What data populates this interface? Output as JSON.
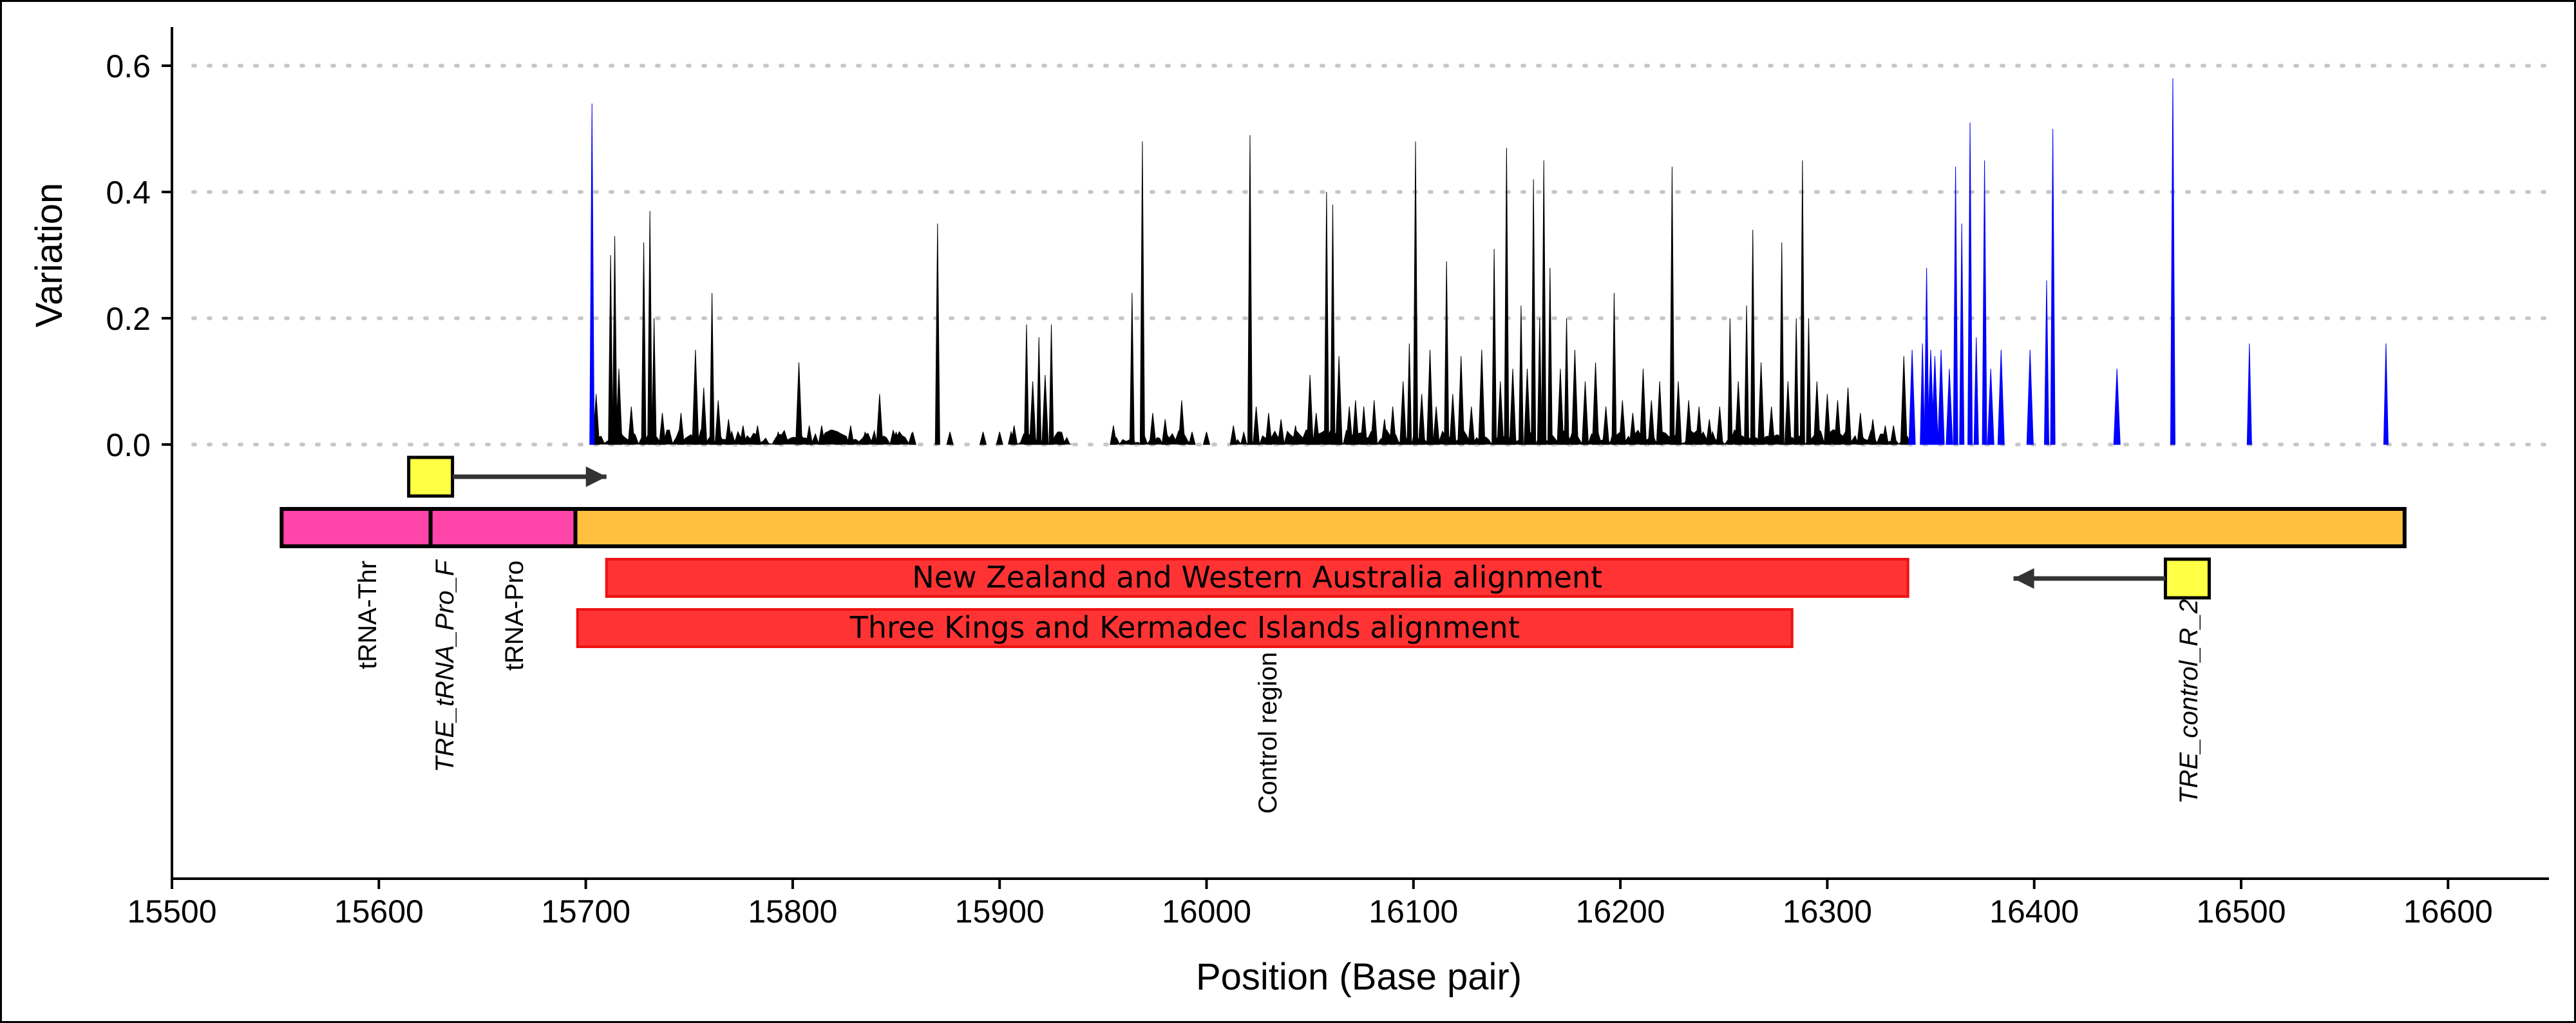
{
  "chart_data": {
    "type": "area",
    "xlabel": "Position (Base pair)",
    "ylabel": "Variation",
    "xlim": [
      15500,
      16655
    ],
    "ylim": [
      0,
      0.65
    ],
    "x_ticks": [
      15500,
      15600,
      15700,
      15800,
      15900,
      16000,
      16100,
      16200,
      16300,
      16400,
      16500,
      16600
    ],
    "y_ticks": [
      0.0,
      0.2,
      0.4,
      0.6
    ],
    "x_tick_labels": [
      "15500",
      "15600",
      "15700",
      "15800",
      "15900",
      "16000",
      "16100",
      "16200",
      "16300",
      "16400",
      "16500",
      "16600"
    ],
    "y_tick_labels": [
      "0.0",
      "0.2",
      "0.4",
      "0.6"
    ],
    "grid": "horizontal dotted",
    "series": [
      {
        "color": "#000000",
        "peaks": [
          [
            15705,
            0.08
          ],
          [
            15712,
            0.3
          ],
          [
            15714,
            0.33
          ],
          [
            15716,
            0.12
          ],
          [
            15722,
            0.06
          ],
          [
            15728,
            0.32
          ],
          [
            15731,
            0.37
          ],
          [
            15733,
            0.2
          ],
          [
            15737,
            0.05
          ],
          [
            15746,
            0.05
          ],
          [
            15753,
            0.15
          ],
          [
            15757,
            0.09
          ],
          [
            15761,
            0.24
          ],
          [
            15764,
            0.07
          ],
          [
            15769,
            0.04
          ],
          [
            15776,
            0.03
          ],
          [
            15783,
            0.03
          ],
          [
            15793,
            0.02
          ],
          [
            15803,
            0.13
          ],
          [
            15808,
            0.03
          ],
          [
            15814,
            0.03
          ],
          [
            15822,
            0.02
          ],
          [
            15828,
            0.03
          ],
          [
            15835,
            0.02
          ],
          [
            15842,
            0.08
          ],
          [
            15850,
            0.02
          ],
          [
            15858,
            0.02
          ],
          [
            15870,
            0.35
          ],
          [
            15876,
            0.02
          ],
          [
            15892,
            0.02
          ],
          [
            15900,
            0.02
          ],
          [
            15907,
            0.03
          ],
          [
            15913,
            0.19
          ],
          [
            15916,
            0.1
          ],
          [
            15919,
            0.17
          ],
          [
            15922,
            0.11
          ],
          [
            15925,
            0.19
          ],
          [
            15930,
            0.02
          ],
          [
            15955,
            0.03
          ],
          [
            15964,
            0.24
          ],
          [
            15969,
            0.48
          ],
          [
            15974,
            0.05
          ],
          [
            15980,
            0.04
          ],
          [
            15988,
            0.07
          ],
          [
            15993,
            0.02
          ],
          [
            16000,
            0.02
          ],
          [
            16013,
            0.03
          ],
          [
            16021,
            0.49
          ],
          [
            16024,
            0.06
          ],
          [
            16030,
            0.05
          ],
          [
            16036,
            0.04
          ],
          [
            16043,
            0.03
          ],
          [
            16050,
            0.11
          ],
          [
            16053,
            0.05
          ],
          [
            16058,
            0.4
          ],
          [
            16061,
            0.38
          ],
          [
            16064,
            0.14
          ],
          [
            16069,
            0.06
          ],
          [
            16072,
            0.07
          ],
          [
            16076,
            0.06
          ],
          [
            16081,
            0.07
          ],
          [
            16086,
            0.04
          ],
          [
            16090,
            0.06
          ],
          [
            16095,
            0.1
          ],
          [
            16098,
            0.16
          ],
          [
            16101,
            0.48
          ],
          [
            16104,
            0.08
          ],
          [
            16108,
            0.15
          ],
          [
            16111,
            0.06
          ],
          [
            16116,
            0.29
          ],
          [
            16119,
            0.08
          ],
          [
            16123,
            0.14
          ],
          [
            16128,
            0.06
          ],
          [
            16133,
            0.15
          ],
          [
            16139,
            0.31
          ],
          [
            16142,
            0.1
          ],
          [
            16145,
            0.47
          ],
          [
            16148,
            0.12
          ],
          [
            16152,
            0.22
          ],
          [
            16155,
            0.12
          ],
          [
            16158,
            0.42
          ],
          [
            16161,
            0.2
          ],
          [
            16163,
            0.45
          ],
          [
            16166,
            0.28
          ],
          [
            16171,
            0.12
          ],
          [
            16174,
            0.2
          ],
          [
            16178,
            0.15
          ],
          [
            16183,
            0.1
          ],
          [
            16188,
            0.13
          ],
          [
            16193,
            0.06
          ],
          [
            16197,
            0.24
          ],
          [
            16201,
            0.07
          ],
          [
            16206,
            0.05
          ],
          [
            16211,
            0.12
          ],
          [
            16215,
            0.07
          ],
          [
            16219,
            0.1
          ],
          [
            16225,
            0.44
          ],
          [
            16228,
            0.1
          ],
          [
            16233,
            0.07
          ],
          [
            16238,
            0.06
          ],
          [
            16243,
            0.04
          ],
          [
            16248,
            0.06
          ],
          [
            16253,
            0.2
          ],
          [
            16257,
            0.1
          ],
          [
            16261,
            0.22
          ],
          [
            16264,
            0.34
          ],
          [
            16268,
            0.13
          ],
          [
            16273,
            0.06
          ],
          [
            16278,
            0.32
          ],
          [
            16281,
            0.1
          ],
          [
            16285,
            0.2
          ],
          [
            16288,
            0.45
          ],
          [
            16291,
            0.2
          ],
          [
            16295,
            0.1
          ],
          [
            16300,
            0.08
          ],
          [
            16305,
            0.07
          ],
          [
            16310,
            0.09
          ],
          [
            16316,
            0.05
          ],
          [
            16322,
            0.04
          ],
          [
            16328,
            0.03
          ],
          [
            16332,
            0.03
          ],
          [
            16337,
            0.14
          ]
        ]
      },
      {
        "color": "#0000ff",
        "peaks": [
          [
            15703,
            0.54
          ],
          [
            16341,
            0.15
          ],
          [
            16346,
            0.16
          ],
          [
            16348,
            0.28
          ],
          [
            16350,
            0.15
          ],
          [
            16352,
            0.14
          ],
          [
            16355,
            0.15
          ],
          [
            16359,
            0.12
          ],
          [
            16362,
            0.44
          ],
          [
            16365,
            0.35
          ],
          [
            16369,
            0.51
          ],
          [
            16372,
            0.17
          ],
          [
            16376,
            0.45
          ],
          [
            16379,
            0.12
          ],
          [
            16384,
            0.15
          ],
          [
            16398,
            0.15
          ],
          [
            16406,
            0.26
          ],
          [
            16409,
            0.5
          ],
          [
            16440,
            0.12
          ],
          [
            16467,
            0.58
          ],
          [
            16504,
            0.16
          ],
          [
            16570,
            0.16
          ]
        ]
      }
    ],
    "features": [
      {
        "name": "tRNA-Thr",
        "start": 15553,
        "end": 15625,
        "color": "#ff44aa"
      },
      {
        "name": "tRNA-Pro",
        "start": 15625,
        "end": 15695,
        "color": "#ff44aa"
      },
      {
        "name": "Control region",
        "start": 15695,
        "end": 16579,
        "color": "#ffbf40"
      }
    ],
    "alignments": [
      {
        "label": "New Zealand and Western Australia alignment",
        "start": 15710,
        "end": 16339,
        "color": "#ff3333"
      },
      {
        "label": "Three Kings and Kermadec Islands alignment",
        "start": 15696,
        "end": 16283,
        "color": "#ff3333"
      }
    ],
    "primers": [
      {
        "name": "TRE_tRNA_Pro_F",
        "position": 15625,
        "direction": "forward",
        "arrow_to": 15710,
        "color": "#ffff44"
      },
      {
        "name": "TRE_control_R_2",
        "position": 16474,
        "direction": "reverse",
        "arrow_to": 16390,
        "color": "#ffff44"
      }
    ]
  }
}
